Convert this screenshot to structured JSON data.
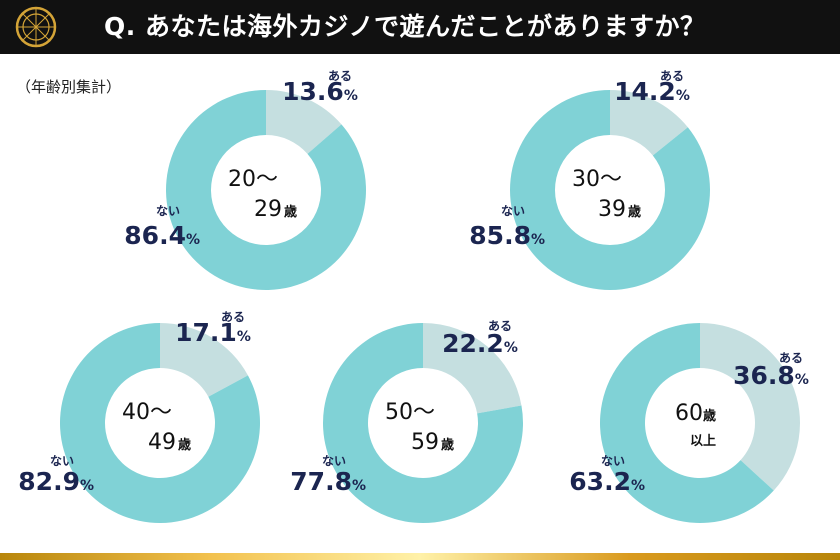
{
  "header": {
    "title": "Q. あなたは海外カジノで遊んだことがありますか？"
  },
  "subtitle": "（年齢別集計）",
  "colors": {
    "yes": "#c5dfe0",
    "no": "#80d2d6",
    "label": "#1b2550",
    "header_bg": "#111111"
  },
  "chart_data": [
    {
      "type": "pie",
      "group": "20〜29歳",
      "center_line1": "20〜",
      "center_line2": "29",
      "center_unit": "歳",
      "slices": [
        {
          "label": "ある",
          "value": 13.6
        },
        {
          "label": "ない",
          "value": 86.4
        }
      ],
      "value_texts": [
        "13.6",
        "86.4"
      ],
      "unit": "%"
    },
    {
      "type": "pie",
      "group": "30〜39歳",
      "center_line1": "30〜",
      "center_line2": "39",
      "center_unit": "歳",
      "slices": [
        {
          "label": "ある",
          "value": 14.2
        },
        {
          "label": "ない",
          "value": 85.8
        }
      ],
      "value_texts": [
        "14.2",
        "85.8"
      ],
      "unit": "%"
    },
    {
      "type": "pie",
      "group": "40〜49歳",
      "center_line1": "40〜",
      "center_line2": "49",
      "center_unit": "歳",
      "slices": [
        {
          "label": "ある",
          "value": 17.1
        },
        {
          "label": "ない",
          "value": 82.9
        }
      ],
      "value_texts": [
        "17.1",
        "82.9"
      ],
      "unit": "%"
    },
    {
      "type": "pie",
      "group": "50〜59歳",
      "center_line1": "50〜",
      "center_line2": "59",
      "center_unit": "歳",
      "slices": [
        {
          "label": "ある",
          "value": 22.2
        },
        {
          "label": "ない",
          "value": 77.8
        }
      ],
      "value_texts": [
        "22.2",
        "77.8"
      ],
      "unit": "%"
    },
    {
      "type": "pie",
      "group": "60歳以上",
      "center_line1": "60",
      "center_line2": "以上",
      "center_unit": "歳",
      "slices": [
        {
          "label": "ある",
          "value": 36.8
        },
        {
          "label": "ない",
          "value": 63.2
        }
      ],
      "value_texts": [
        "36.8",
        "63.2"
      ],
      "unit": "%"
    }
  ]
}
